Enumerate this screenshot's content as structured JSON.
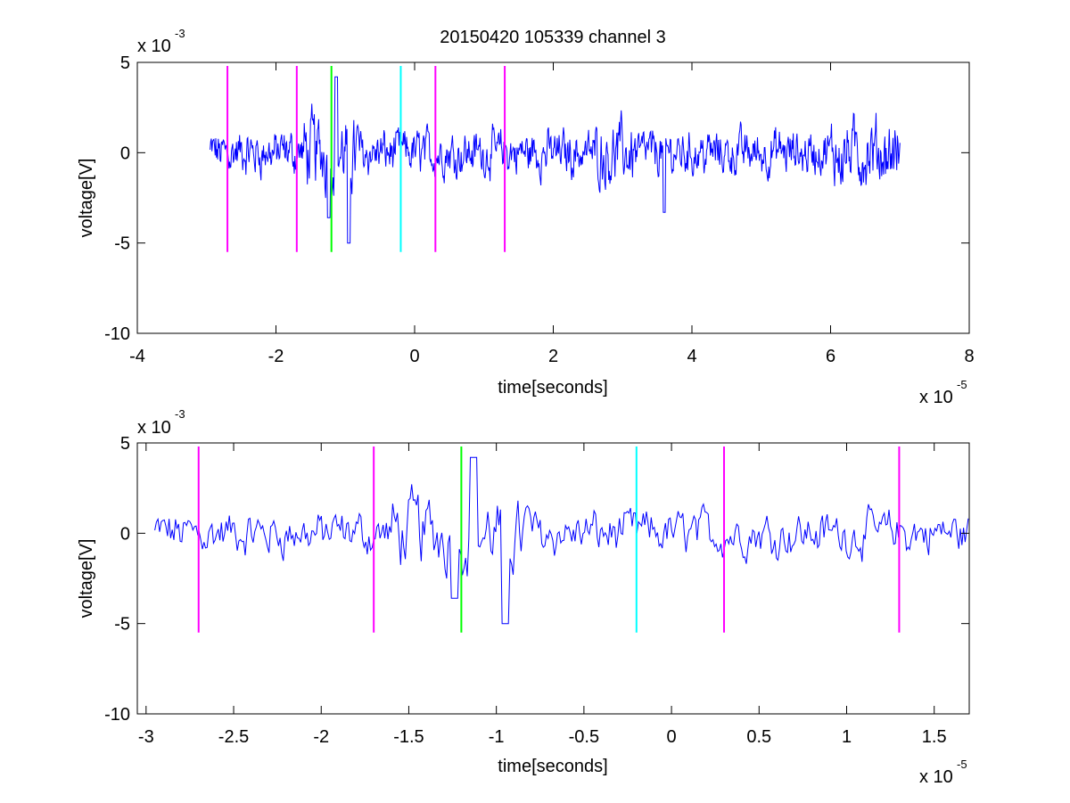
{
  "figure_title": "20150420 105339 channel 3",
  "colors": {
    "trace": "#0000ff",
    "marker_magenta": "#ff00ff",
    "marker_green": "#00ff00",
    "marker_cyan": "#00ffff",
    "axes": "#000000"
  },
  "chart_data": [
    {
      "type": "line",
      "title": "20150420 105339 channel 3",
      "xlabel": "time[seconds]",
      "ylabel": "voltage[V]",
      "x_exponent_label": "x 10",
      "x_exponent": "-5",
      "y_exponent_label": "x 10",
      "y_exponent": "-3",
      "xlim": [
        -4,
        8
      ],
      "ylim": [
        -10,
        5
      ],
      "x_ticks": [
        -4,
        -2,
        0,
        2,
        4,
        6,
        8
      ],
      "x_tick_labels": [
        "-4",
        "-2",
        "0",
        "2",
        "4",
        "6",
        "8"
      ],
      "y_ticks": [
        -10,
        -5,
        0,
        5
      ],
      "y_tick_labels": [
        "-10",
        "-5",
        "0",
        "5"
      ],
      "grid": false,
      "series": [
        {
          "color": "#0000ff",
          "x_range": [
            -2.95,
            7.0
          ],
          "y_range": [
            -5.0,
            4.2
          ],
          "description_values": "noisy voltage trace, mostly between -2 and 2, larger spikes near x=-1.2 and x=-1.0"
        }
      ],
      "markers": [
        {
          "x": -2.7,
          "y": [
            -5.5,
            4.8
          ],
          "color": "#ff00ff"
        },
        {
          "x": -1.7,
          "y": [
            -5.5,
            4.8
          ],
          "color": "#ff00ff"
        },
        {
          "x": -1.2,
          "y": [
            -5.5,
            4.8
          ],
          "color": "#00ff00"
        },
        {
          "x": -0.2,
          "y": [
            -5.5,
            4.8
          ],
          "color": "#00ffff"
        },
        {
          "x": 0.3,
          "y": [
            -5.5,
            4.8
          ],
          "color": "#ff00ff"
        },
        {
          "x": 1.3,
          "y": [
            -5.5,
            4.8
          ],
          "color": "#ff00ff"
        }
      ]
    },
    {
      "type": "line",
      "xlabel": "time[seconds]",
      "ylabel": "voltage[V]",
      "x_exponent_label": "x 10",
      "x_exponent": "-5",
      "y_exponent_label": "x 10",
      "y_exponent": "-3",
      "xlim": [
        -3.05,
        1.7
      ],
      "ylim": [
        -10,
        5
      ],
      "x_ticks": [
        -3,
        -2.5,
        -2,
        -1.5,
        -1,
        -0.5,
        0,
        0.5,
        1,
        1.5
      ],
      "x_tick_labels": [
        "-3",
        "-2.5",
        "-2",
        "-1.5",
        "-1",
        "-0.5",
        "0",
        "0.5",
        "1",
        "1.5"
      ],
      "y_ticks": [
        -10,
        -5,
        0,
        5
      ],
      "y_tick_labels": [
        "-10",
        "-5",
        "0",
        "5"
      ],
      "grid": false,
      "series": [
        {
          "color": "#0000ff",
          "x_range": [
            -2.95,
            1.7
          ],
          "y_range": [
            -5.0,
            4.2
          ]
        }
      ],
      "markers": [
        {
          "x": -2.7,
          "y": [
            -5.5,
            4.8
          ],
          "color": "#ff00ff"
        },
        {
          "x": -1.7,
          "y": [
            -5.5,
            4.8
          ],
          "color": "#ff00ff"
        },
        {
          "x": -1.2,
          "y": [
            -5.5,
            4.8
          ],
          "color": "#00ff00"
        },
        {
          "x": -0.2,
          "y": [
            -5.5,
            4.8
          ],
          "color": "#00ffff"
        },
        {
          "x": 0.3,
          "y": [
            -5.5,
            4.8
          ],
          "color": "#ff00ff"
        },
        {
          "x": 1.3,
          "y": [
            -5.5,
            4.8
          ],
          "color": "#ff00ff"
        }
      ]
    }
  ]
}
